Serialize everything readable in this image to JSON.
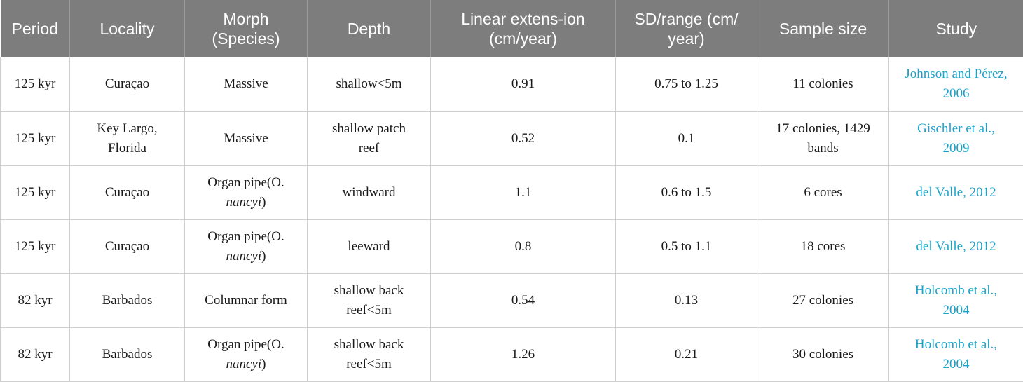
{
  "header": {
    "period": "Period",
    "locality": "Locality",
    "morph": [
      "Morph",
      "(Species)"
    ],
    "depth": "Depth",
    "linear": [
      "Linear extens-ion",
      "(cm/year)"
    ],
    "sd": [
      "SD/range (cm/",
      "year)"
    ],
    "sample": "Sample size",
    "study": "Study"
  },
  "rows": [
    {
      "period": "125 kyr",
      "locality": [
        "Curaçao"
      ],
      "morph": {
        "line1": "Massive",
        "line2_pre": "",
        "line2_em": "",
        "line2_post": ""
      },
      "depth": [
        "shallow<5m"
      ],
      "linear": "0.91",
      "sd": "0.75 to 1.25",
      "sample": [
        "11 colonies"
      ],
      "study": [
        "Johnson and Pérez,",
        "2006"
      ]
    },
    {
      "period": "125 kyr",
      "locality": [
        "Key Largo,",
        "Florida"
      ],
      "morph": {
        "line1": "Massive",
        "line2_pre": "",
        "line2_em": "",
        "line2_post": ""
      },
      "depth": [
        "shallow patch",
        "reef"
      ],
      "linear": "0.52",
      "sd": "0.1",
      "sample": [
        "17 colonies, 1429",
        "bands"
      ],
      "study": [
        "Gischler et al.,",
        "2009"
      ]
    },
    {
      "period": "125 kyr",
      "locality": [
        "Curaçao"
      ],
      "morph": {
        "line1": "Organ pipe(O.",
        "line2_pre": "",
        "line2_em": "nancyi",
        "line2_post": ")"
      },
      "depth": [
        "windward"
      ],
      "linear": "1.1",
      "sd": "0.6 to 1.5",
      "sample": [
        "6 cores"
      ],
      "study": [
        "del Valle, 2012"
      ]
    },
    {
      "period": "125 kyr",
      "locality": [
        "Curaçao"
      ],
      "morph": {
        "line1": "Organ pipe(O.",
        "line2_pre": "",
        "line2_em": "nancyi",
        "line2_post": ")"
      },
      "depth": [
        "leeward"
      ],
      "linear": "0.8",
      "sd": "0.5 to 1.1",
      "sample": [
        "18 cores"
      ],
      "study": [
        "del Valle, 2012"
      ]
    },
    {
      "period": "82 kyr",
      "locality": [
        "Barbados"
      ],
      "morph": {
        "line1": "Columnar form",
        "line2_pre": "",
        "line2_em": "",
        "line2_post": ""
      },
      "depth": [
        "shallow back",
        "reef<5m"
      ],
      "linear": "0.54",
      "sd": "0.13",
      "sample": [
        "27 colonies"
      ],
      "study": [
        "Holcomb et al.,",
        "2004"
      ]
    },
    {
      "period": "82 kyr",
      "locality": [
        "Barbados"
      ],
      "morph": {
        "line1": "Organ pipe(O.",
        "line2_pre": "",
        "line2_em": "nancyi",
        "line2_post": ")"
      },
      "depth": [
        "shallow back",
        "reef<5m"
      ],
      "linear": "1.26",
      "sd": "0.21",
      "sample": [
        "30 colonies"
      ],
      "study": [
        "Holcomb et al.,",
        "2004"
      ]
    }
  ],
  "colors": {
    "header_bg": "#7d7d7d",
    "link": "#1aa3c9",
    "border": "#cfcfcf"
  }
}
